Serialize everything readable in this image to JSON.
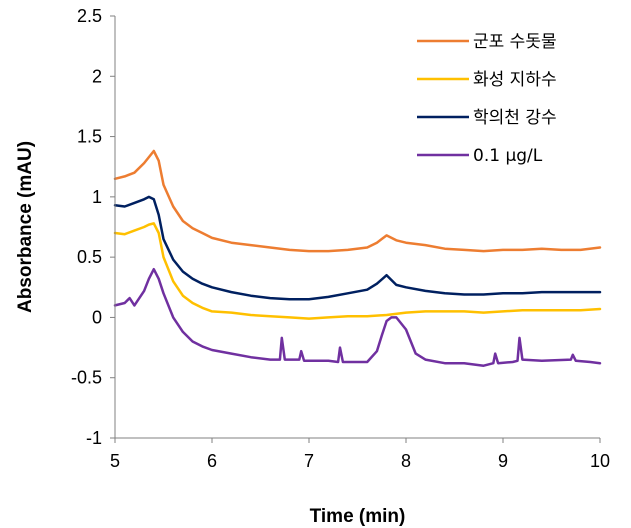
{
  "chart_data": {
    "type": "line",
    "xlabel": "Time (min)",
    "ylabel": "Absorbance (mAU)",
    "xlim": [
      5,
      10
    ],
    "ylim": [
      -1,
      2.5
    ],
    "x_ticks": [
      5,
      6,
      7,
      8,
      9,
      10
    ],
    "y_ticks": [
      -1,
      -0.5,
      0,
      0.5,
      1,
      1.5,
      2,
      2.5
    ],
    "x_tick_labels": [
      "5",
      "6",
      "7",
      "8",
      "9",
      "10"
    ],
    "y_tick_labels": [
      "-1",
      "-0.5",
      "0",
      "0.5",
      "1",
      "1.5",
      "2",
      "2.5"
    ],
    "grid": false,
    "legend_position": "top-right",
    "series": [
      {
        "name": "군포 수돗물",
        "color": "#ED7D31",
        "x": [
          5.0,
          5.1,
          5.2,
          5.3,
          5.35,
          5.4,
          5.45,
          5.5,
          5.6,
          5.7,
          5.8,
          5.9,
          6.0,
          6.2,
          6.4,
          6.6,
          6.8,
          7.0,
          7.2,
          7.4,
          7.6,
          7.7,
          7.8,
          7.9,
          8.0,
          8.2,
          8.4,
          8.6,
          8.8,
          9.0,
          9.2,
          9.4,
          9.6,
          9.8,
          10.0
        ],
        "y": [
          1.15,
          1.17,
          1.2,
          1.28,
          1.33,
          1.38,
          1.3,
          1.1,
          0.92,
          0.8,
          0.74,
          0.7,
          0.66,
          0.62,
          0.6,
          0.58,
          0.56,
          0.55,
          0.55,
          0.56,
          0.58,
          0.62,
          0.68,
          0.64,
          0.62,
          0.6,
          0.57,
          0.56,
          0.55,
          0.56,
          0.56,
          0.57,
          0.56,
          0.56,
          0.58
        ]
      },
      {
        "name": "화성 지하수",
        "color": "#FFC000",
        "x": [
          5.0,
          5.1,
          5.2,
          5.3,
          5.35,
          5.4,
          5.45,
          5.5,
          5.6,
          5.7,
          5.8,
          5.9,
          6.0,
          6.2,
          6.4,
          6.6,
          6.8,
          7.0,
          7.2,
          7.4,
          7.6,
          7.8,
          8.0,
          8.2,
          8.4,
          8.6,
          8.8,
          9.0,
          9.2,
          9.4,
          9.6,
          9.8,
          10.0
        ],
        "y": [
          0.7,
          0.69,
          0.72,
          0.75,
          0.77,
          0.78,
          0.7,
          0.5,
          0.3,
          0.18,
          0.12,
          0.08,
          0.05,
          0.04,
          0.02,
          0.01,
          0.0,
          -0.01,
          0.0,
          0.01,
          0.01,
          0.02,
          0.04,
          0.05,
          0.05,
          0.05,
          0.04,
          0.05,
          0.06,
          0.06,
          0.06,
          0.06,
          0.07
        ]
      },
      {
        "name": "학의천 강수",
        "color": "#002060",
        "x": [
          5.0,
          5.1,
          5.2,
          5.3,
          5.35,
          5.4,
          5.45,
          5.5,
          5.6,
          5.7,
          5.8,
          5.9,
          6.0,
          6.2,
          6.4,
          6.6,
          6.8,
          7.0,
          7.2,
          7.4,
          7.6,
          7.7,
          7.8,
          7.9,
          8.0,
          8.2,
          8.4,
          8.6,
          8.8,
          9.0,
          9.2,
          9.4,
          9.6,
          9.8,
          10.0
        ],
        "y": [
          0.93,
          0.92,
          0.95,
          0.98,
          1.0,
          0.98,
          0.85,
          0.65,
          0.48,
          0.38,
          0.32,
          0.28,
          0.25,
          0.21,
          0.18,
          0.16,
          0.15,
          0.15,
          0.17,
          0.2,
          0.23,
          0.28,
          0.35,
          0.27,
          0.25,
          0.22,
          0.2,
          0.19,
          0.19,
          0.2,
          0.2,
          0.21,
          0.21,
          0.21,
          0.21
        ]
      },
      {
        "name": "0.1 μg/L",
        "color": "#7030A0",
        "x": [
          5.0,
          5.1,
          5.15,
          5.2,
          5.3,
          5.35,
          5.4,
          5.45,
          5.5,
          5.6,
          5.7,
          5.8,
          5.9,
          6.0,
          6.2,
          6.4,
          6.6,
          6.7,
          6.72,
          6.75,
          6.9,
          6.92,
          6.95,
          7.2,
          7.3,
          7.32,
          7.35,
          7.6,
          7.7,
          7.75,
          7.8,
          7.85,
          7.9,
          8.0,
          8.1,
          8.2,
          8.4,
          8.6,
          8.8,
          8.9,
          8.92,
          8.95,
          9.1,
          9.15,
          9.17,
          9.2,
          9.4,
          9.7,
          9.72,
          9.75,
          9.9,
          10.0
        ],
        "y": [
          0.1,
          0.12,
          0.16,
          0.1,
          0.22,
          0.32,
          0.4,
          0.32,
          0.2,
          0.0,
          -0.12,
          -0.2,
          -0.24,
          -0.27,
          -0.3,
          -0.33,
          -0.35,
          -0.35,
          -0.17,
          -0.35,
          -0.35,
          -0.28,
          -0.36,
          -0.36,
          -0.37,
          -0.25,
          -0.37,
          -0.37,
          -0.28,
          -0.15,
          -0.03,
          0.0,
          0.0,
          -0.1,
          -0.3,
          -0.35,
          -0.38,
          -0.38,
          -0.4,
          -0.38,
          -0.3,
          -0.38,
          -0.37,
          -0.36,
          -0.17,
          -0.35,
          -0.36,
          -0.35,
          -0.31,
          -0.36,
          -0.37,
          -0.38
        ]
      }
    ]
  }
}
